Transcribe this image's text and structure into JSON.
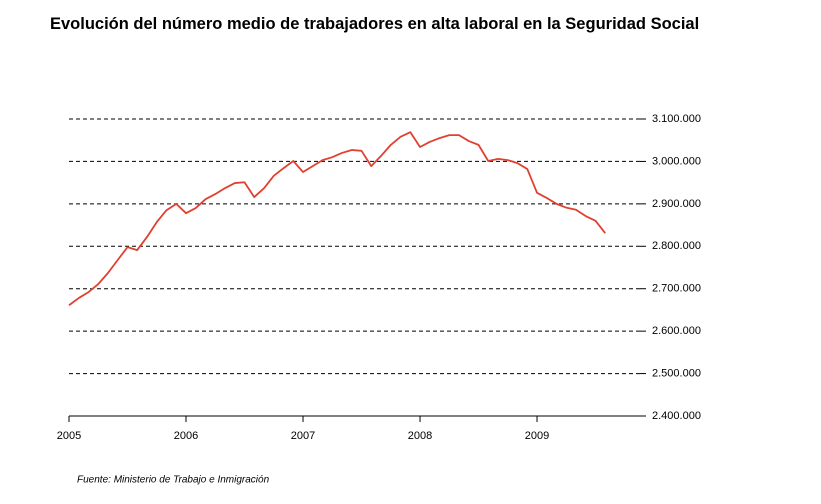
{
  "chart_data": {
    "type": "line",
    "title": "Evolución del número medio de trabajadores en alta laboral en la Seguridad Social",
    "source": "Fuente: Ministerio de Trabajo e Inmigración",
    "x": [
      2005,
      2005.083,
      2005.167,
      2005.25,
      2005.333,
      2005.417,
      2005.5,
      2005.583,
      2005.667,
      2005.75,
      2005.833,
      2005.917,
      2006,
      2006.083,
      2006.167,
      2006.25,
      2006.333,
      2006.417,
      2006.5,
      2006.583,
      2006.667,
      2006.75,
      2006.833,
      2006.917,
      2007,
      2007.083,
      2007.167,
      2007.25,
      2007.333,
      2007.417,
      2007.5,
      2007.583,
      2007.667,
      2007.75,
      2007.833,
      2007.917,
      2008,
      2008.083,
      2008.167,
      2008.25,
      2008.333,
      2008.417,
      2008.5,
      2008.583,
      2008.667,
      2008.75,
      2008.833,
      2008.917,
      2009,
      2009.083,
      2009.167,
      2009.25,
      2009.333,
      2009.417,
      2009.5,
      2009.583
    ],
    "series": [
      {
        "name": "Trabajadores en alta",
        "color": "#e0402f",
        "values": [
          2661000,
          2678000,
          2692000,
          2711000,
          2737000,
          2768000,
          2798000,
          2791000,
          2822000,
          2857000,
          2885000,
          2900000,
          2878000,
          2890000,
          2911000,
          2923000,
          2937000,
          2949000,
          2951000,
          2916000,
          2937000,
          2966000,
          2984000,
          3001000,
          2975000,
          2989000,
          3003000,
          3010000,
          3020000,
          3027000,
          3025000,
          2989000,
          3013000,
          3039000,
          3058000,
          3069000,
          3034000,
          3046000,
          3055000,
          3062000,
          3062000,
          3048000,
          3039000,
          3001000,
          3006000,
          3003000,
          2996000,
          2982000,
          2926000,
          2914000,
          2900000,
          2891000,
          2886000,
          2871000,
          2860000,
          2831000
        ]
      }
    ],
    "xlim": [
      2005,
      2009.88
    ],
    "xticks": [
      2005,
      2006,
      2007,
      2008,
      2009
    ],
    "ylim": [
      2400000,
      3100000
    ],
    "yticks": [
      {
        "value": 2400000,
        "label": "2.400.000"
      },
      {
        "value": 2500000,
        "label": "2.500.000"
      },
      {
        "value": 2600000,
        "label": "2.600.000"
      },
      {
        "value": 2700000,
        "label": "2.700.000"
      },
      {
        "value": 2800000,
        "label": "2.800.000"
      },
      {
        "value": 2900000,
        "label": "2.900.000"
      },
      {
        "value": 3000000,
        "label": "3.000.000"
      },
      {
        "value": 3100000,
        "label": "3.100.000"
      }
    ],
    "grid": true
  }
}
